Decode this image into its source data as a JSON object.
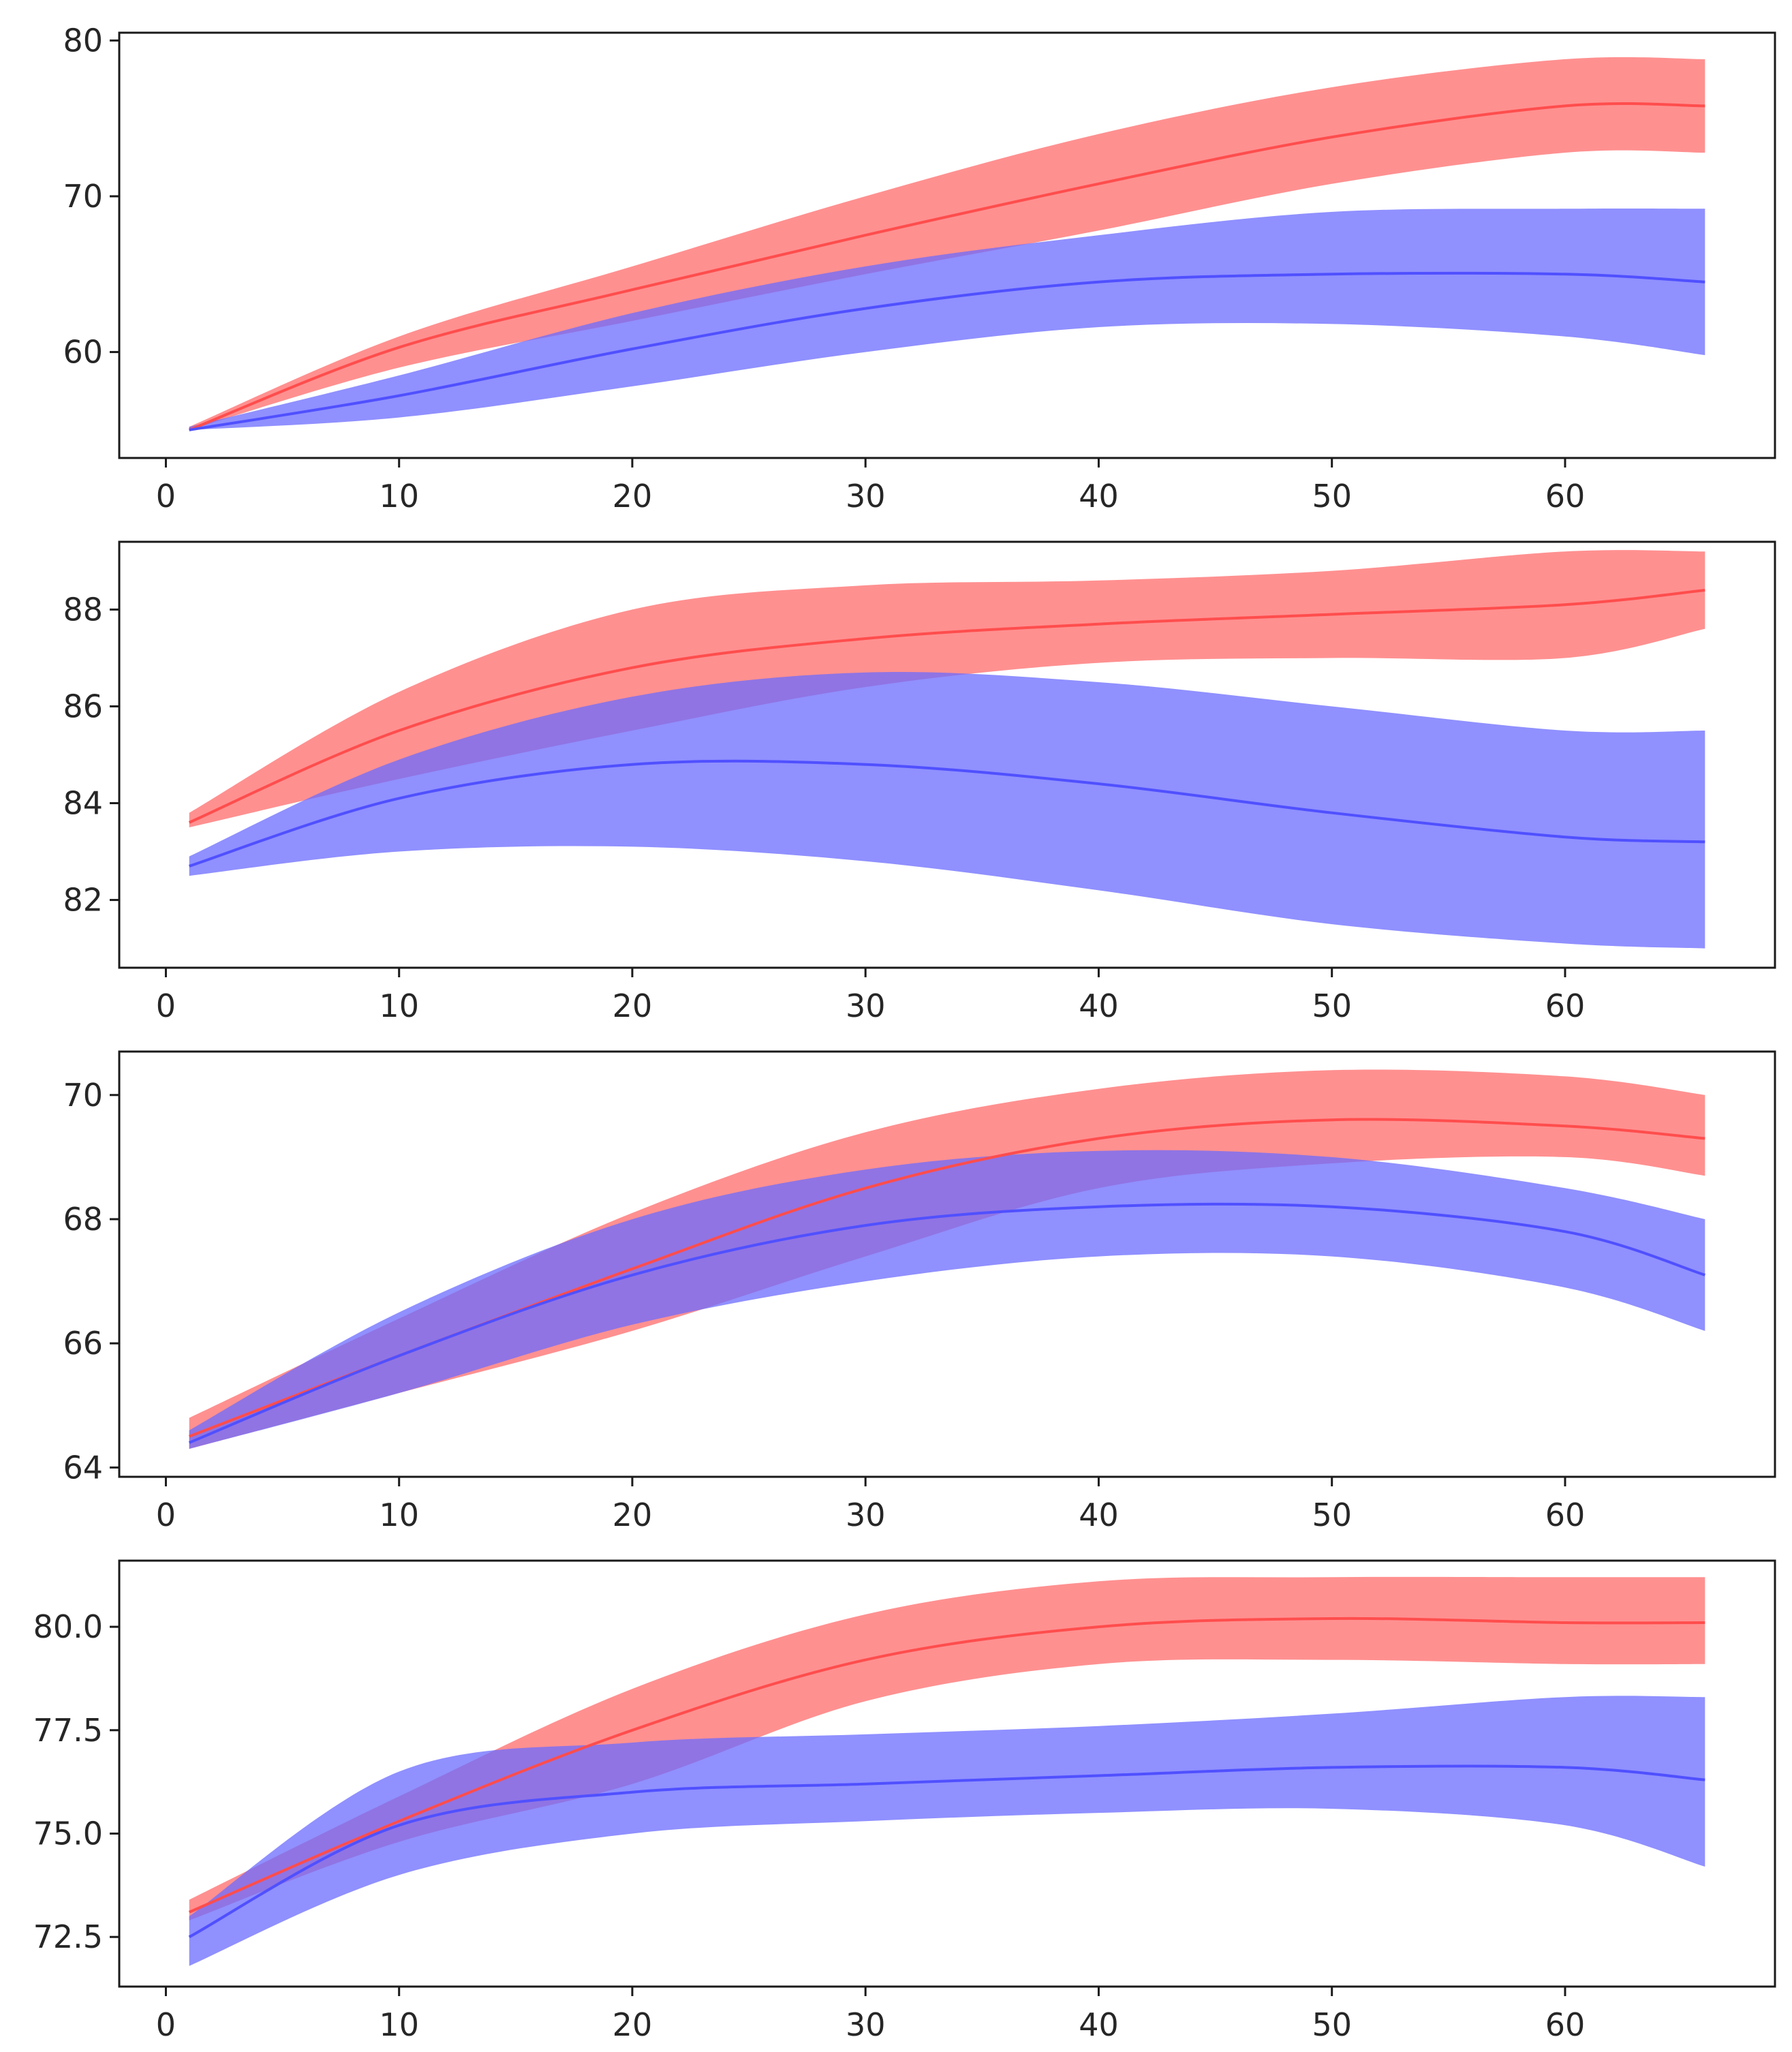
{
  "colors": {
    "red_band": "#ff6b6b",
    "red_line": "#ff4d4d",
    "blue_band": "#6b6bff",
    "blue_line": "#5050ff",
    "axis": "#1a1a1a",
    "text": "#262626"
  },
  "chart_data": [
    {
      "type": "line",
      "title": "",
      "xlabel": "",
      "ylabel": "",
      "xlim": [
        -2,
        69
      ],
      "ylim": [
        53.2,
        80.5
      ],
      "xticks": [
        0,
        10,
        20,
        30,
        40,
        50,
        60
      ],
      "xtick_labels": [
        "0",
        "10",
        "20",
        "30",
        "40",
        "50",
        "60"
      ],
      "yticks": [
        60,
        70,
        80
      ],
      "ytick_labels": [
        "60",
        "70",
        "80"
      ],
      "x": [
        1,
        10,
        20,
        30,
        40,
        50,
        60,
        66
      ],
      "series": [
        {
          "name": "red",
          "color": "red",
          "mean": [
            55.0,
            60.3,
            64.0,
            67.5,
            70.8,
            73.8,
            75.8,
            75.8
          ],
          "lower": [
            55.0,
            59.0,
            62.0,
            65.0,
            67.8,
            70.8,
            72.8,
            72.8
          ],
          "upper": [
            55.2,
            61.0,
            65.5,
            70.0,
            74.0,
            77.0,
            78.8,
            78.8
          ]
        },
        {
          "name": "blue",
          "color": "blue",
          "mean": [
            55.0,
            57.2,
            60.2,
            62.8,
            64.5,
            65.0,
            65.0,
            64.5
          ],
          "lower": [
            55.0,
            55.8,
            57.8,
            60.0,
            61.6,
            61.8,
            61.0,
            59.8
          ],
          "upper": [
            55.2,
            58.5,
            62.5,
            65.5,
            67.5,
            69.0,
            69.2,
            69.2
          ]
        }
      ]
    },
    {
      "type": "line",
      "title": "",
      "xlabel": "",
      "ylabel": "",
      "xlim": [
        -2,
        69
      ],
      "ylim": [
        80.6,
        89.4
      ],
      "xticks": [
        0,
        10,
        20,
        30,
        40,
        50,
        60
      ],
      "xtick_labels": [
        "0",
        "10",
        "20",
        "30",
        "40",
        "50",
        "60"
      ],
      "yticks": [
        82,
        84,
        86,
        88
      ],
      "ytick_labels": [
        "82",
        "84",
        "86",
        "88"
      ],
      "x": [
        1,
        10,
        20,
        30,
        40,
        50,
        60,
        66
      ],
      "series": [
        {
          "name": "red",
          "color": "red",
          "mean": [
            83.6,
            85.5,
            86.8,
            87.4,
            87.7,
            87.9,
            88.1,
            88.4
          ],
          "lower": [
            83.5,
            84.5,
            85.5,
            86.4,
            86.9,
            87.0,
            87.0,
            87.6
          ],
          "upper": [
            83.8,
            86.3,
            88.0,
            88.5,
            88.6,
            88.8,
            89.2,
            89.2
          ]
        },
        {
          "name": "blue",
          "color": "blue",
          "mean": [
            82.7,
            84.1,
            84.8,
            84.8,
            84.4,
            83.8,
            83.3,
            83.2
          ],
          "lower": [
            82.5,
            83.0,
            83.1,
            82.8,
            82.2,
            81.5,
            81.1,
            81.0
          ],
          "upper": [
            82.9,
            84.9,
            86.2,
            86.7,
            86.5,
            86.0,
            85.5,
            85.5
          ]
        }
      ]
    },
    {
      "type": "line",
      "title": "",
      "xlabel": "",
      "ylabel": "",
      "xlim": [
        -2,
        69
      ],
      "ylim": [
        63.85,
        70.7
      ],
      "xticks": [
        0,
        10,
        20,
        30,
        40,
        50,
        60
      ],
      "xtick_labels": [
        "0",
        "10",
        "20",
        "30",
        "40",
        "50",
        "60"
      ],
      "yticks": [
        64,
        66,
        68,
        70
      ],
      "ytick_labels": [
        "64",
        "66",
        "68",
        "70"
      ],
      "x": [
        1,
        10,
        20,
        30,
        40,
        50,
        60,
        66
      ],
      "series": [
        {
          "name": "red",
          "color": "red",
          "mean": [
            64.5,
            65.8,
            67.2,
            68.5,
            69.3,
            69.6,
            69.5,
            69.3
          ],
          "lower": [
            64.3,
            65.2,
            66.2,
            67.4,
            68.5,
            68.9,
            69.0,
            68.7
          ],
          "upper": [
            64.8,
            66.4,
            68.1,
            69.4,
            70.1,
            70.4,
            70.3,
            70.0
          ]
        },
        {
          "name": "blue",
          "color": "blue",
          "mean": [
            64.4,
            65.8,
            67.1,
            67.9,
            68.2,
            68.2,
            67.8,
            67.1
          ],
          "lower": [
            64.3,
            65.2,
            66.3,
            67.0,
            67.4,
            67.4,
            66.9,
            66.2
          ],
          "upper": [
            64.6,
            66.5,
            68.0,
            68.8,
            69.1,
            69.0,
            68.5,
            68.0
          ]
        }
      ]
    },
    {
      "type": "line",
      "title": "",
      "xlabel": "",
      "ylabel": "",
      "xlim": [
        -2,
        69
      ],
      "ylim": [
        71.3,
        81.6
      ],
      "xticks": [
        0,
        10,
        20,
        30,
        40,
        50,
        60
      ],
      "xtick_labels": [
        "0",
        "10",
        "20",
        "30",
        "40",
        "50",
        "60"
      ],
      "yticks": [
        72.5,
        75.0,
        77.5,
        80.0
      ],
      "ytick_labels": [
        "72.5",
        "75.0",
        "77.5",
        "80.0"
      ],
      "x": [
        1,
        10,
        20,
        30,
        40,
        50,
        60,
        66
      ],
      "series": [
        {
          "name": "red",
          "color": "red",
          "mean": [
            73.1,
            75.3,
            77.5,
            79.2,
            80.0,
            80.2,
            80.1,
            80.1
          ],
          "lower": [
            72.9,
            74.8,
            76.2,
            78.2,
            79.1,
            79.2,
            79.1,
            79.1
          ],
          "upper": [
            73.4,
            75.9,
            78.5,
            80.3,
            81.1,
            81.2,
            81.2,
            81.2
          ]
        },
        {
          "name": "blue",
          "color": "blue",
          "mean": [
            72.5,
            75.2,
            76.0,
            76.2,
            76.4,
            76.6,
            76.6,
            76.3
          ],
          "lower": [
            71.8,
            74.0,
            75.0,
            75.3,
            75.5,
            75.6,
            75.2,
            74.2
          ],
          "upper": [
            73.0,
            76.5,
            77.2,
            77.4,
            77.6,
            77.9,
            78.3,
            78.3
          ]
        }
      ]
    }
  ]
}
